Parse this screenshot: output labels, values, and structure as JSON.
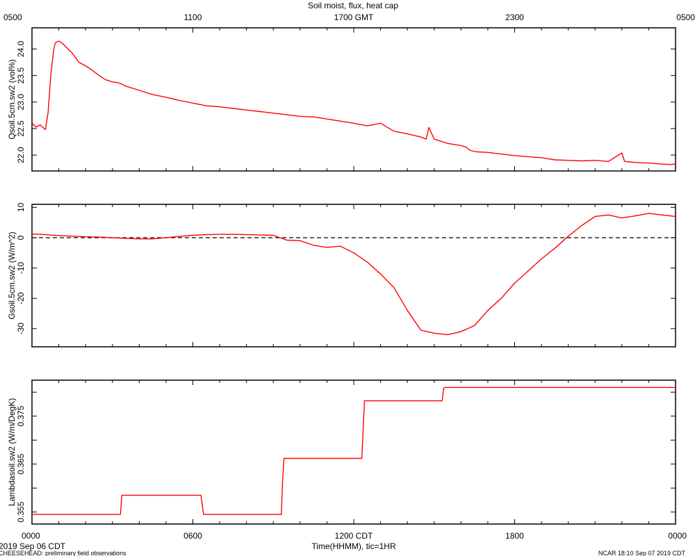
{
  "title": "Soil moist, flux, heat cap",
  "top_axis": {
    "label": "1700 GMT",
    "ticks": [
      "0500",
      "1100",
      "1700 GMT",
      "2300",
      "0500"
    ]
  },
  "bottom_axis": {
    "label": "Time(HHMM), tic=1HR",
    "ticks": [
      "0000",
      "0600",
      "1200 CDT",
      "1800",
      "0000"
    ]
  },
  "footer": {
    "date_left": "2019 Sep 06 CDT",
    "project_left": "CHEESEHEAD: preliminary field observations",
    "stamp_right": "NCAR 18:10 Sep 07 2019 CDT"
  },
  "colors": {
    "series": "#ff0000",
    "axes": "#000000",
    "zero_line": "#000000"
  },
  "chart_data": [
    {
      "type": "line",
      "ylabel": "Qsoil.5cm.sw2 (vol%)",
      "xlim": [
        0,
        24
      ],
      "ylim": [
        21.7,
        24.4
      ],
      "yticks": [
        22.0,
        22.5,
        23.0,
        23.5,
        24.0
      ],
      "ytick_labels": [
        "22.0",
        "22.5",
        "23.0",
        "23.5",
        "24.0"
      ],
      "series": [
        {
          "x": [
            0,
            0.15,
            0.3,
            0.5,
            0.6,
            0.7,
            0.8,
            0.85,
            0.9,
            1.0,
            1.1,
            1.25,
            1.5,
            1.75,
            2.0,
            2.25,
            2.5,
            2.75,
            3.0,
            3.25,
            3.5,
            3.75,
            4.0,
            4.5,
            5.0,
            5.5,
            6.0,
            6.5,
            7.0,
            7.5,
            8.0,
            8.5,
            9.0,
            9.5,
            10.0,
            10.5,
            11.0,
            11.5,
            12.0,
            12.5,
            13.0,
            13.5,
            14.0,
            14.5,
            14.7,
            14.8,
            15.0,
            15.5,
            16.0,
            16.2,
            16.3,
            16.4,
            16.6,
            17.0,
            17.5,
            18.0,
            18.5,
            19.0,
            19.5,
            20.0,
            20.5,
            21.0,
            21.5,
            22.0,
            22.1,
            22.3,
            22.5,
            23.0,
            23.5,
            23.8,
            24.0
          ],
          "y": [
            22.6,
            22.53,
            22.57,
            22.48,
            22.8,
            23.5,
            23.95,
            24.08,
            24.13,
            24.15,
            24.12,
            24.05,
            23.92,
            23.75,
            23.68,
            23.6,
            23.5,
            23.42,
            23.38,
            23.36,
            23.3,
            23.26,
            23.22,
            23.14,
            23.09,
            23.03,
            22.98,
            22.93,
            22.91,
            22.88,
            22.85,
            22.82,
            22.79,
            22.76,
            22.73,
            22.72,
            22.68,
            22.64,
            22.6,
            22.55,
            22.6,
            22.45,
            22.4,
            22.34,
            22.3,
            22.52,
            22.3,
            22.22,
            22.18,
            22.15,
            22.1,
            22.08,
            22.06,
            22.05,
            22.02,
            21.99,
            21.97,
            21.95,
            21.91,
            21.9,
            21.89,
            21.9,
            21.88,
            22.04,
            21.88,
            21.87,
            21.86,
            21.85,
            21.83,
            21.82,
            21.83
          ]
        }
      ]
    },
    {
      "type": "line",
      "ylabel": "Gsoil.5cm.sw2 (W/m^2)",
      "xlim": [
        0,
        24
      ],
      "ylim": [
        -36,
        11
      ],
      "yticks": [
        -30,
        -20,
        -10,
        0,
        10
      ],
      "ytick_labels": [
        "-30",
        "-20",
        "-10",
        "0",
        "10"
      ],
      "reference_line": 0,
      "series": [
        {
          "x": [
            0,
            0.5,
            1,
            1.5,
            2,
            2.5,
            3,
            3.5,
            4,
            4.5,
            5,
            5.5,
            6,
            6.5,
            7,
            7.5,
            8,
            8.5,
            9,
            9.5,
            10,
            10.5,
            11,
            11.5,
            12,
            12.5,
            13,
            13.5,
            14,
            14.5,
            15,
            15.5,
            16,
            16.5,
            17,
            17.5,
            18,
            18.5,
            19,
            19.5,
            20,
            20.5,
            21,
            21.5,
            22,
            22.5,
            23,
            23.5,
            24
          ],
          "y": [
            1.2,
            1.0,
            0.7,
            0.5,
            0.3,
            0.2,
            0.0,
            -0.2,
            -0.4,
            -0.4,
            0.0,
            0.4,
            0.8,
            1.0,
            1.1,
            1.1,
            1.0,
            0.9,
            0.8,
            -0.8,
            -1.0,
            -2.5,
            -3.2,
            -2.8,
            -5.0,
            -8.0,
            -12.0,
            -16.5,
            -24.0,
            -30.5,
            -31.5,
            -32.0,
            -31.0,
            -29.0,
            -24.0,
            -20.0,
            -15.0,
            -11.0,
            -7.0,
            -3.5,
            0.5,
            4.0,
            7.0,
            7.5,
            6.5,
            7.2,
            8.0,
            7.5,
            7.0
          ]
        }
      ]
    },
    {
      "type": "line",
      "ylabel": "Lambdasoil.sw2 (W/m/DegK)",
      "xlim": [
        0,
        24
      ],
      "ylim": [
        0.3525,
        0.3825
      ],
      "yticks": [
        0.355,
        0.36,
        0.365,
        0.37,
        0.375,
        0.38
      ],
      "ytick_labels": [
        "0.355",
        "",
        "0.365",
        "",
        "0.375",
        ""
      ],
      "series": [
        {
          "x": [
            0,
            3.3,
            3.35,
            6.3,
            6.4,
            9.3,
            9.35,
            9.4,
            12.3,
            12.4,
            15.3,
            15.35,
            15.4,
            24
          ],
          "y": [
            0.3545,
            0.3545,
            0.3585,
            0.3585,
            0.3545,
            0.3545,
            0.3622,
            0.3662,
            0.3662,
            0.3782,
            0.3782,
            0.3808,
            0.381,
            0.381
          ]
        }
      ]
    }
  ]
}
